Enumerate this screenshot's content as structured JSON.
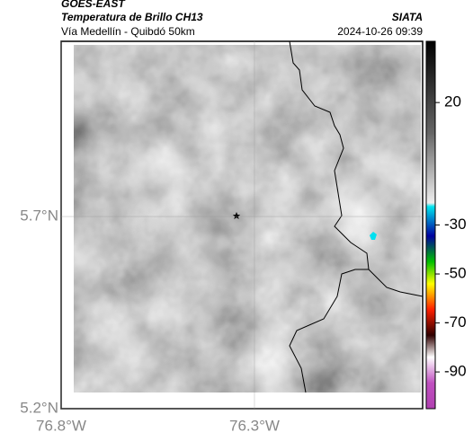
{
  "header": {
    "title": "GOES-EAST",
    "subtitle": "Temperatura de Brillo CH13",
    "region": "Vía Medellín - Quibdó 50km",
    "agency": "SIATA",
    "timestamp": "2024-10-26 09:39"
  },
  "map": {
    "xlim": [
      -76.8,
      -75.865
    ],
    "ylim": [
      5.2,
      6.156
    ],
    "xticks": [
      {
        "value": -76.8,
        "label": "76.8°W"
      },
      {
        "value": -76.3,
        "label": "76.3°W"
      }
    ],
    "yticks": [
      {
        "value": 5.7,
        "label": "5.7°N"
      },
      {
        "value": 5.2,
        "label": "5.2°N"
      }
    ]
  },
  "colorbar": {
    "lim": [
      45,
      -105
    ],
    "ticks": [
      20,
      -30,
      -50,
      -70,
      -90
    ]
  }
}
